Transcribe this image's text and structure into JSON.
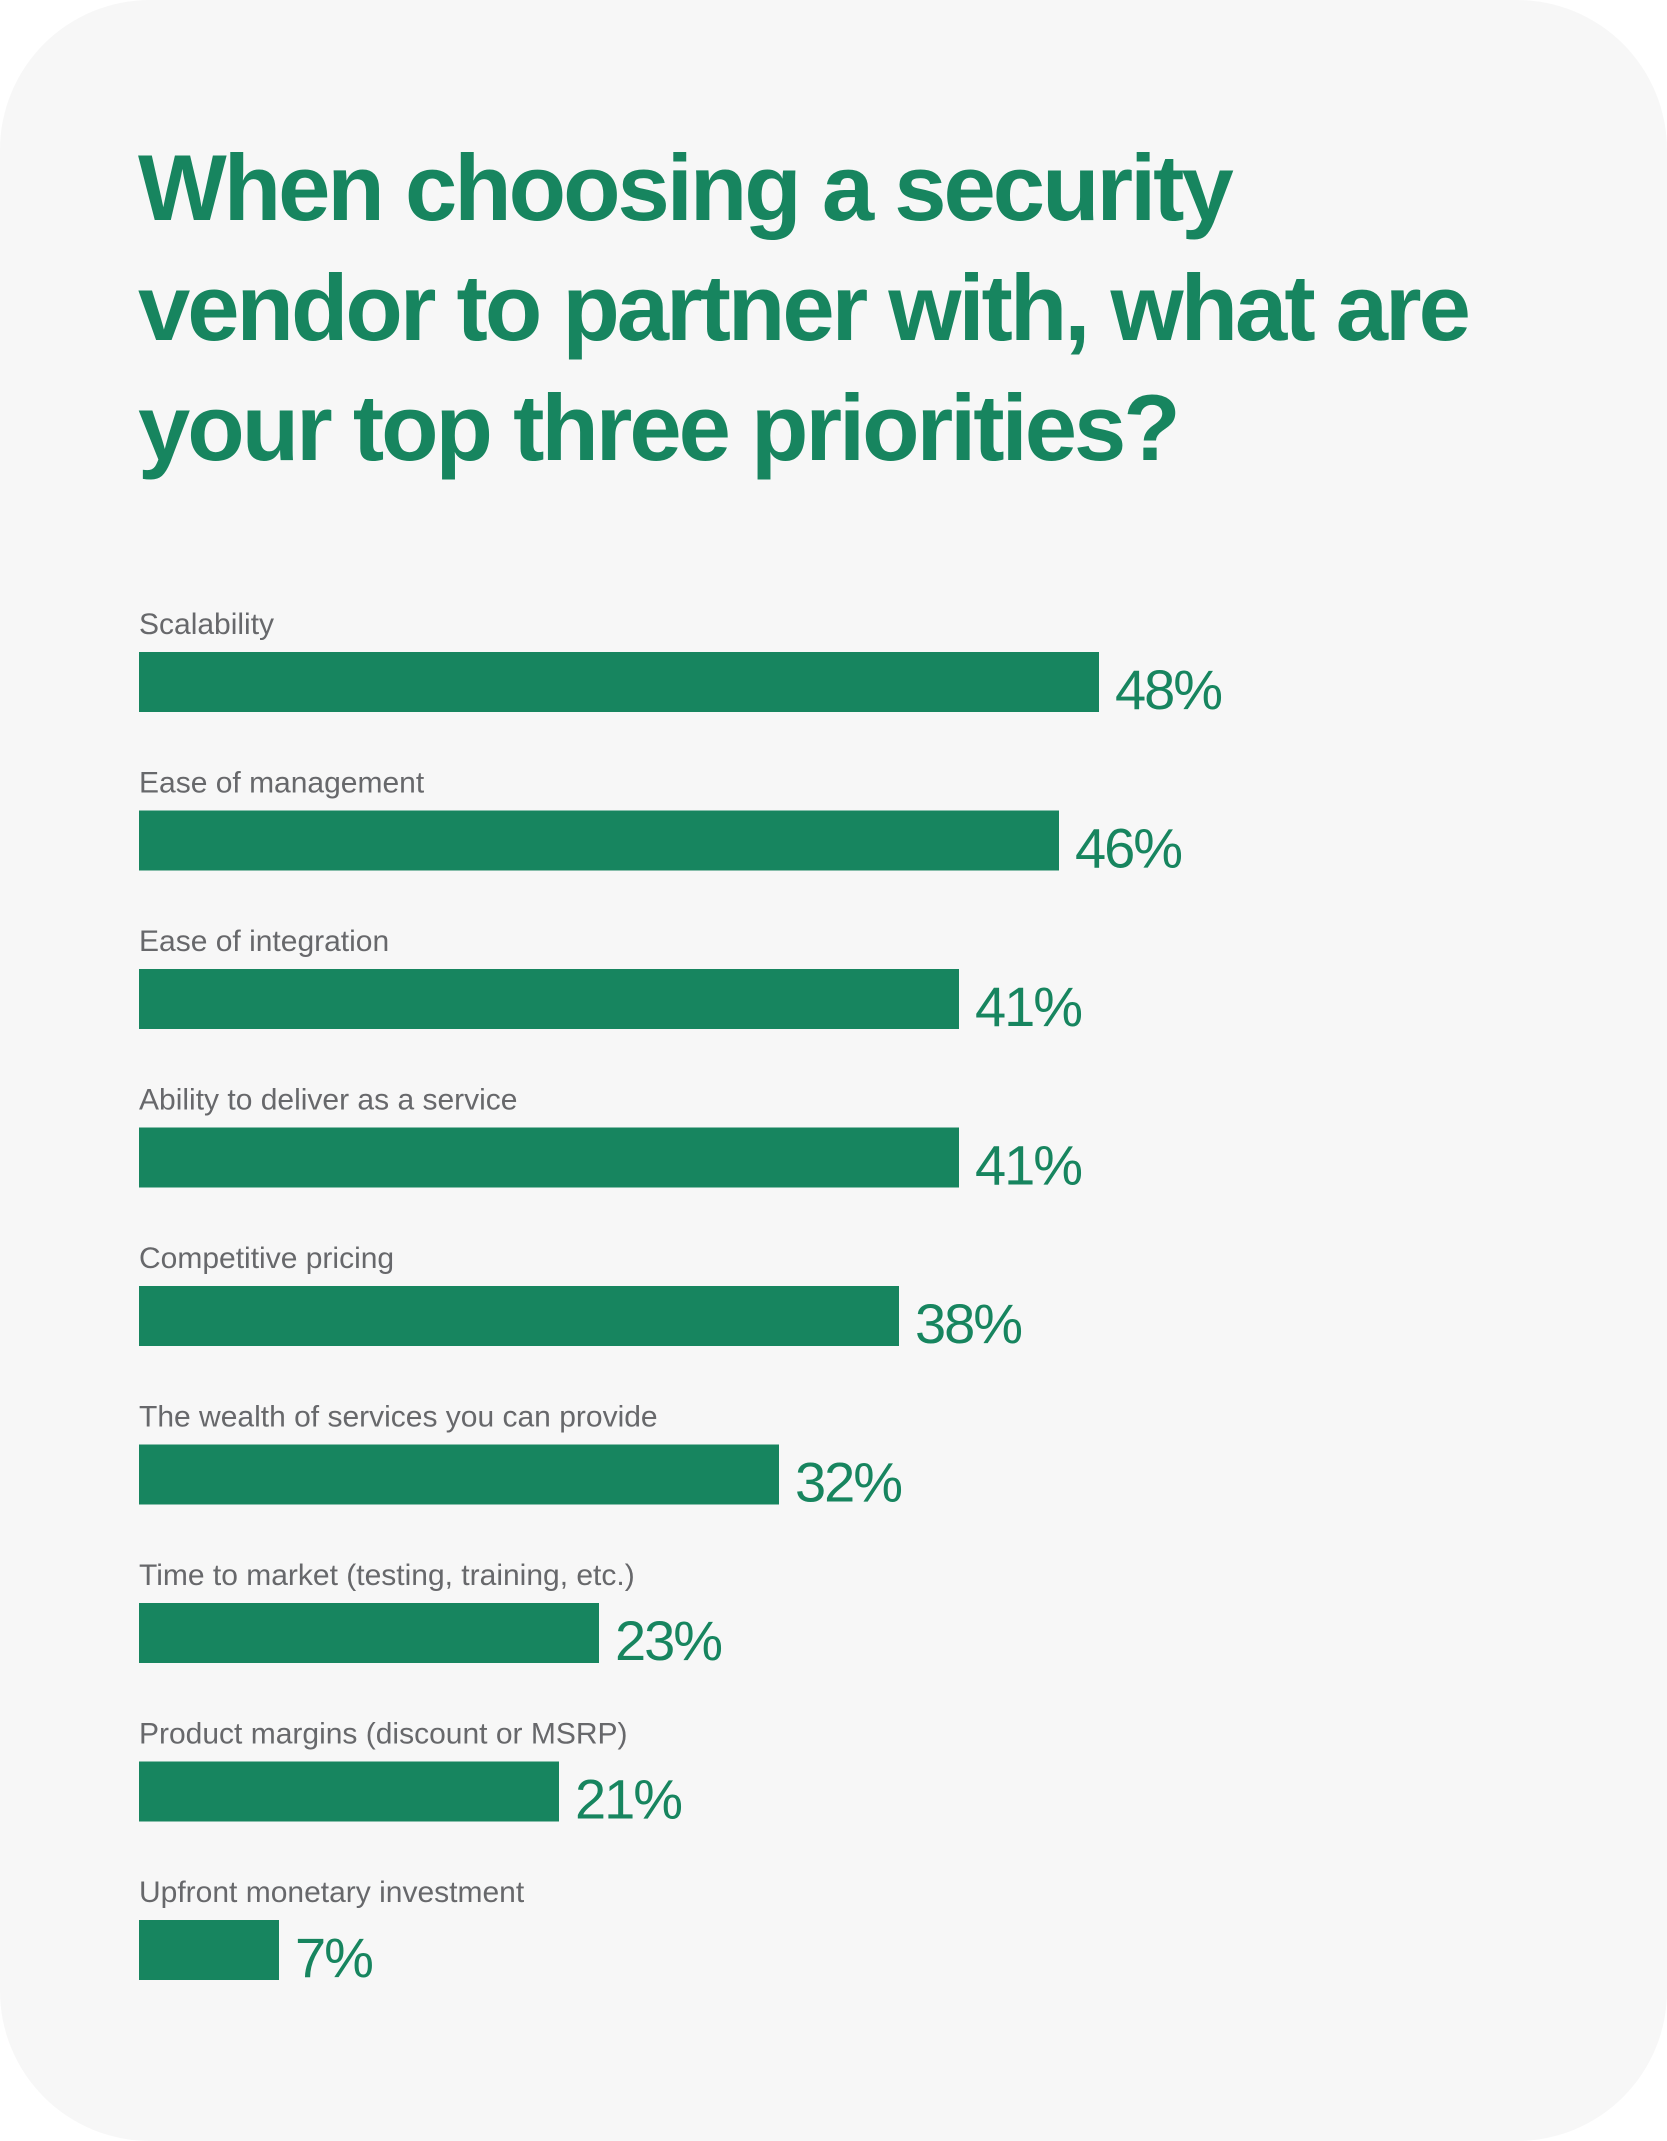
{
  "colors": {
    "accent": "#17855f",
    "label_text": "#67686b",
    "background": "#f7f7f7"
  },
  "chart_data": {
    "type": "bar",
    "orientation": "horizontal",
    "title_lines": [
      "When choosing a security",
      "vendor to partner with, what are",
      "your top three priorities?"
    ],
    "categories": [
      "Scalability",
      "Ease of management",
      "Ease of integration",
      "Ability to deliver as a service",
      "Competitive pricing",
      "The wealth of services you can provide",
      "Time to market (testing, training, etc.)",
      "Product margins (discount or MSRP)",
      "Upfront monetary investment"
    ],
    "values": [
      48,
      46,
      41,
      41,
      38,
      32,
      23,
      21,
      7
    ],
    "value_labels": [
      "48%",
      "46%",
      "41%",
      "41%",
      "38%",
      "32%",
      "23%",
      "21%",
      "7%"
    ],
    "unit": "%",
    "grid": false,
    "legend": "none"
  }
}
